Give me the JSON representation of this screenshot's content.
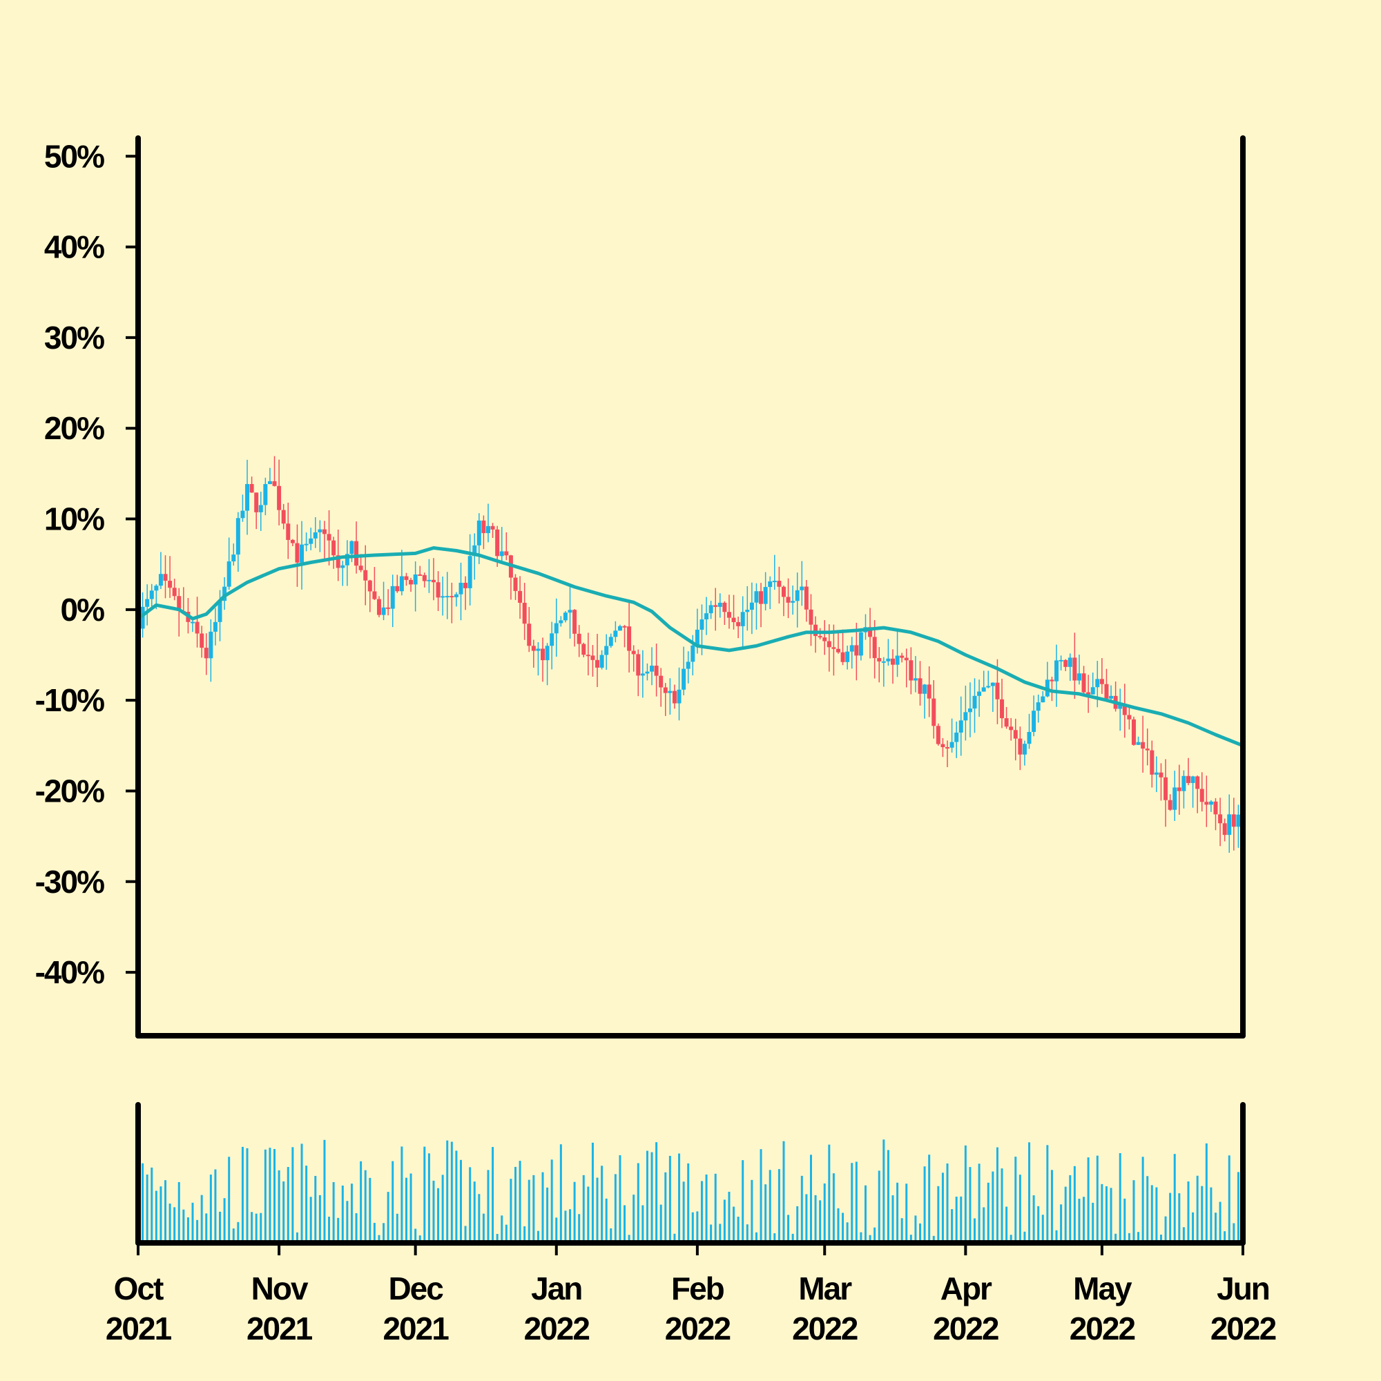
{
  "colors": {
    "background": "#fff7cc",
    "up": "#1ab3e6",
    "down": "#f24d5c",
    "moving_average": "#1aadb3",
    "volume": "#1ab3e6",
    "axis": "#000000"
  },
  "chart_data": {
    "type": "candlestick",
    "title": "",
    "xlabel": "",
    "ylabel": "",
    "y_unit": "%",
    "ylim": [
      -47,
      52
    ],
    "xlim": [
      "2021-10-01",
      "2022-06-01"
    ],
    "yticks": [
      {
        "value": 50,
        "label": "50%"
      },
      {
        "value": 40,
        "label": "40%"
      },
      {
        "value": 30,
        "label": "30%"
      },
      {
        "value": 20,
        "label": "20%"
      },
      {
        "value": 10,
        "label": "10%"
      },
      {
        "value": 0,
        "label": "0%"
      },
      {
        "value": -10,
        "label": "-10%"
      },
      {
        "value": -20,
        "label": "-20%"
      },
      {
        "value": -30,
        "label": "-30%"
      },
      {
        "value": -40,
        "label": "-40%"
      }
    ],
    "xticks": [
      {
        "date": "2021-10-01",
        "month": "Oct",
        "year": "2021"
      },
      {
        "date": "2021-11-01",
        "month": "Nov",
        "year": "2021"
      },
      {
        "date": "2021-12-01",
        "month": "Dec",
        "year": "2021"
      },
      {
        "date": "2022-01-01",
        "month": "Jan",
        "year": "2022"
      },
      {
        "date": "2022-02-01",
        "month": "Feb",
        "year": "2022"
      },
      {
        "date": "2022-03-01",
        "month": "Mar",
        "year": "2022"
      },
      {
        "date": "2022-04-01",
        "month": "Apr",
        "year": "2022"
      },
      {
        "date": "2022-05-01",
        "month": "May",
        "year": "2022"
      },
      {
        "date": "2022-06-01",
        "month": "Jun",
        "year": "2022"
      }
    ],
    "close_path": [
      [
        "2021-10-01",
        -1
      ],
      [
        "2021-10-06",
        3
      ],
      [
        "2021-10-10",
        0
      ],
      [
        "2021-10-14",
        -3
      ],
      [
        "2021-10-16",
        -5
      ],
      [
        "2021-10-19",
        0
      ],
      [
        "2021-10-22",
        7
      ],
      [
        "2021-10-25",
        13
      ],
      [
        "2021-10-28",
        11
      ],
      [
        "2021-10-30",
        15
      ],
      [
        "2021-11-02",
        10
      ],
      [
        "2021-11-05",
        6
      ],
      [
        "2021-11-08",
        7
      ],
      [
        "2021-11-11",
        9
      ],
      [
        "2021-11-14",
        4
      ],
      [
        "2021-11-17",
        7
      ],
      [
        "2021-11-21",
        1
      ],
      [
        "2021-11-24",
        0
      ],
      [
        "2021-11-28",
        3
      ],
      [
        "2021-12-02",
        4
      ],
      [
        "2021-12-05",
        2
      ],
      [
        "2021-12-08",
        1
      ],
      [
        "2021-12-12",
        3
      ],
      [
        "2021-12-15",
        9
      ],
      [
        "2021-12-18",
        8
      ],
      [
        "2021-12-21",
        5
      ],
      [
        "2021-12-25",
        -2
      ],
      [
        "2021-12-29",
        -6
      ],
      [
        "2022-01-01",
        -2
      ],
      [
        "2022-01-04",
        -1
      ],
      [
        "2022-01-07",
        -4
      ],
      [
        "2022-01-10",
        -7
      ],
      [
        "2022-01-13",
        -3
      ],
      [
        "2022-01-15",
        -1
      ],
      [
        "2022-01-18",
        -6
      ],
      [
        "2022-01-22",
        -7
      ],
      [
        "2022-01-25",
        -10
      ],
      [
        "2022-01-28",
        -9
      ],
      [
        "2022-01-31",
        -4
      ],
      [
        "2022-02-03",
        0
      ],
      [
        "2022-02-06",
        1
      ],
      [
        "2022-02-10",
        -1
      ],
      [
        "2022-02-14",
        1
      ],
      [
        "2022-02-18",
        3
      ],
      [
        "2022-02-21",
        0
      ],
      [
        "2022-02-24",
        2
      ],
      [
        "2022-02-27",
        -2
      ],
      [
        "2022-03-02",
        -4
      ],
      [
        "2022-03-06",
        -5
      ],
      [
        "2022-03-10",
        -3
      ],
      [
        "2022-03-14",
        -6
      ],
      [
        "2022-03-17",
        -5
      ],
      [
        "2022-03-20",
        -7
      ],
      [
        "2022-03-23",
        -9
      ],
      [
        "2022-03-26",
        -14
      ],
      [
        "2022-03-29",
        -15
      ],
      [
        "2022-04-01",
        -11
      ],
      [
        "2022-04-04",
        -9
      ],
      [
        "2022-04-07",
        -9
      ],
      [
        "2022-04-10",
        -12
      ],
      [
        "2022-04-13",
        -15
      ],
      [
        "2022-04-16",
        -12
      ],
      [
        "2022-04-19",
        -8
      ],
      [
        "2022-04-22",
        -5
      ],
      [
        "2022-04-25",
        -7
      ],
      [
        "2022-04-28",
        -10
      ],
      [
        "2022-05-01",
        -8
      ],
      [
        "2022-05-05",
        -11
      ],
      [
        "2022-05-09",
        -15
      ],
      [
        "2022-05-13",
        -18
      ],
      [
        "2022-05-16",
        -21
      ],
      [
        "2022-05-19",
        -18
      ],
      [
        "2022-05-22",
        -20
      ],
      [
        "2022-05-25",
        -22
      ],
      [
        "2022-05-28",
        -24
      ],
      [
        "2022-06-01",
        -22
      ]
    ],
    "moving_average": [
      [
        "2021-10-01",
        -1
      ],
      [
        "2021-10-05",
        0.5
      ],
      [
        "2021-10-10",
        0
      ],
      [
        "2021-10-13",
        -1
      ],
      [
        "2021-10-16",
        -0.5
      ],
      [
        "2021-10-20",
        1.5
      ],
      [
        "2021-10-25",
        3
      ],
      [
        "2021-11-01",
        4.5
      ],
      [
        "2021-11-08",
        5.2
      ],
      [
        "2021-11-15",
        5.8
      ],
      [
        "2021-11-22",
        6
      ],
      [
        "2021-12-01",
        6.2
      ],
      [
        "2021-12-05",
        6.8
      ],
      [
        "2021-12-10",
        6.5
      ],
      [
        "2021-12-15",
        6
      ],
      [
        "2021-12-20",
        5.2
      ],
      [
        "2021-12-28",
        4
      ],
      [
        "2022-01-05",
        2.5
      ],
      [
        "2022-01-12",
        1.5
      ],
      [
        "2022-01-18",
        0.8
      ],
      [
        "2022-01-22",
        -0.2
      ],
      [
        "2022-01-26",
        -2
      ],
      [
        "2022-02-01",
        -4
      ],
      [
        "2022-02-08",
        -4.5
      ],
      [
        "2022-02-14",
        -4
      ],
      [
        "2022-02-21",
        -3
      ],
      [
        "2022-02-25",
        -2.5
      ],
      [
        "2022-03-02",
        -2.5
      ],
      [
        "2022-03-08",
        -2.3
      ],
      [
        "2022-03-14",
        -2
      ],
      [
        "2022-03-20",
        -2.5
      ],
      [
        "2022-03-26",
        -3.5
      ],
      [
        "2022-04-01",
        -5
      ],
      [
        "2022-04-08",
        -6.5
      ],
      [
        "2022-04-14",
        -8
      ],
      [
        "2022-04-20",
        -9
      ],
      [
        "2022-04-26",
        -9.3
      ],
      [
        "2022-05-02",
        -10
      ],
      [
        "2022-05-08",
        -10.8
      ],
      [
        "2022-05-14",
        -11.5
      ],
      [
        "2022-05-20",
        -12.5
      ],
      [
        "2022-05-26",
        -13.8
      ],
      [
        "2022-06-01",
        -15
      ]
    ]
  }
}
